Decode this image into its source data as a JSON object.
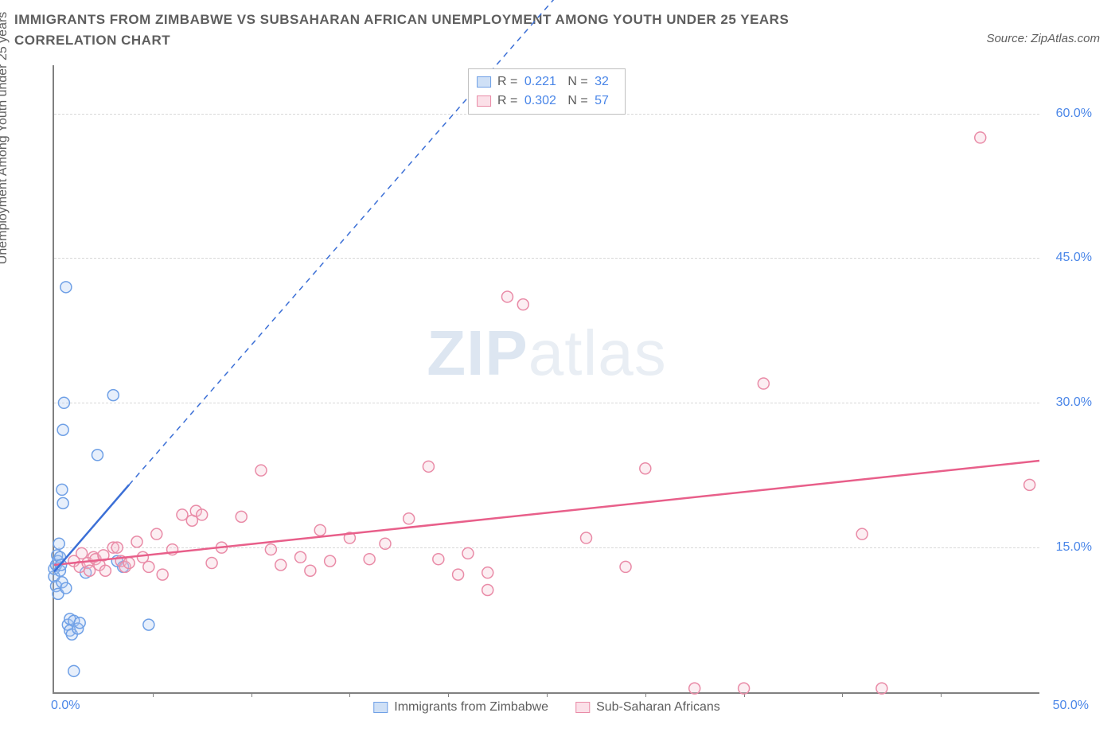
{
  "title": "IMMIGRANTS FROM ZIMBABWE VS SUBSAHARAN AFRICAN UNEMPLOYMENT AMONG YOUTH UNDER 25 YEARS CORRELATION CHART",
  "source": "Source: ZipAtlas.com",
  "watermark_a": "ZIP",
  "watermark_b": "atlas",
  "y_axis_label": "Unemployment Among Youth under 25 years",
  "chart": {
    "type": "scatter-with-trendlines",
    "background_color": "#ffffff",
    "grid_color": "#d8d8d8",
    "axis_color": "#808080",
    "tick_label_color": "#4a86e8",
    "text_color": "#5e5e5e",
    "xlim": [
      0,
      50
    ],
    "ylim": [
      0,
      65
    ],
    "x_ticks": [
      0,
      5,
      10,
      15,
      20,
      25,
      30,
      35,
      40,
      45,
      50
    ],
    "x_tick_labels": {
      "0": "0.0%",
      "50": "50.0%"
    },
    "y_ticks": [
      15,
      30,
      45,
      60
    ],
    "y_tick_labels": {
      "15": "15.0%",
      "30": "30.0%",
      "45": "45.0%",
      "60": "60.0%"
    },
    "marker_radius": 7,
    "marker_fill_opacity": 0.28,
    "marker_stroke_width": 1.5,
    "series": [
      {
        "id": "zimbabwe",
        "legend_label": "Immigrants from Zimbabwe",
        "color_stroke": "#6fa0e6",
        "color_fill": "#a9c6ef",
        "swatch_border": "#6fa0e6",
        "swatch_fill": "#cfe0f6",
        "R": "0.221",
        "N": "32",
        "trend": {
          "x1": 0,
          "y1": 12.5,
          "x2": 3.8,
          "y2": 21.5,
          "dash_x2": 28,
          "dash_y2": 78,
          "color": "#3b6fd6",
          "width": 2.5
        },
        "points": [
          [
            0.0,
            12.0
          ],
          [
            0.0,
            12.8
          ],
          [
            0.1,
            13.2
          ],
          [
            0.1,
            11.0
          ],
          [
            0.15,
            14.2
          ],
          [
            0.2,
            13.6
          ],
          [
            0.2,
            10.2
          ],
          [
            0.25,
            15.4
          ],
          [
            0.3,
            12.6
          ],
          [
            0.3,
            14.0
          ],
          [
            0.35,
            13.2
          ],
          [
            0.4,
            11.4
          ],
          [
            0.4,
            21.0
          ],
          [
            0.45,
            19.6
          ],
          [
            0.45,
            27.2
          ],
          [
            0.5,
            30.0
          ],
          [
            0.6,
            42.0
          ],
          [
            0.6,
            10.8
          ],
          [
            0.7,
            7.0
          ],
          [
            0.8,
            6.4
          ],
          [
            0.8,
            7.6
          ],
          [
            0.9,
            6.0
          ],
          [
            1.0,
            2.2
          ],
          [
            1.0,
            7.4
          ],
          [
            1.2,
            6.6
          ],
          [
            1.3,
            7.2
          ],
          [
            1.6,
            12.4
          ],
          [
            2.2,
            24.6
          ],
          [
            3.0,
            30.8
          ],
          [
            3.2,
            13.6
          ],
          [
            3.5,
            13.0
          ],
          [
            4.8,
            7.0
          ]
        ]
      },
      {
        "id": "subsaharan",
        "legend_label": "Sub-Saharan Africans",
        "color_stroke": "#e98ba7",
        "color_fill": "#f6c3d2",
        "swatch_border": "#e98ba7",
        "swatch_fill": "#fbe0e8",
        "R": "0.302",
        "N": "57",
        "trend": {
          "x1": 0,
          "y1": 13.2,
          "x2": 50,
          "y2": 24.0,
          "color": "#e85f8a",
          "width": 2.5
        },
        "points": [
          [
            1.0,
            13.6
          ],
          [
            1.3,
            13.0
          ],
          [
            1.4,
            14.4
          ],
          [
            1.7,
            13.4
          ],
          [
            1.8,
            12.6
          ],
          [
            2.0,
            14.0
          ],
          [
            2.1,
            13.8
          ],
          [
            2.3,
            13.2
          ],
          [
            2.5,
            14.2
          ],
          [
            2.6,
            12.6
          ],
          [
            3.0,
            15.0
          ],
          [
            3.2,
            15.0
          ],
          [
            3.4,
            13.6
          ],
          [
            3.6,
            13.0
          ],
          [
            3.8,
            13.4
          ],
          [
            4.2,
            15.6
          ],
          [
            4.5,
            14.0
          ],
          [
            4.8,
            13.0
          ],
          [
            5.2,
            16.4
          ],
          [
            5.5,
            12.2
          ],
          [
            6.0,
            14.8
          ],
          [
            6.5,
            18.4
          ],
          [
            7.0,
            17.8
          ],
          [
            7.2,
            18.8
          ],
          [
            7.5,
            18.4
          ],
          [
            8.0,
            13.4
          ],
          [
            8.5,
            15.0
          ],
          [
            9.5,
            18.2
          ],
          [
            10.5,
            23.0
          ],
          [
            11.0,
            14.8
          ],
          [
            11.5,
            13.2
          ],
          [
            12.5,
            14.0
          ],
          [
            13.0,
            12.6
          ],
          [
            13.5,
            16.8
          ],
          [
            14.0,
            13.6
          ],
          [
            15.0,
            16.0
          ],
          [
            16.0,
            13.8
          ],
          [
            16.8,
            15.4
          ],
          [
            18.0,
            18.0
          ],
          [
            19.0,
            23.4
          ],
          [
            19.5,
            13.8
          ],
          [
            20.5,
            12.2
          ],
          [
            21.0,
            14.4
          ],
          [
            22.0,
            10.6
          ],
          [
            22.0,
            12.4
          ],
          [
            23.0,
            41.0
          ],
          [
            23.8,
            40.2
          ],
          [
            27.0,
            16.0
          ],
          [
            29.0,
            13.0
          ],
          [
            30.0,
            23.2
          ],
          [
            32.5,
            0.4
          ],
          [
            35.0,
            0.4
          ],
          [
            36.0,
            32.0
          ],
          [
            41.0,
            16.4
          ],
          [
            42.0,
            0.4
          ],
          [
            47.0,
            57.5
          ],
          [
            49.5,
            21.5
          ]
        ]
      }
    ],
    "legend_top": {
      "R_label": "R =",
      "N_label": "N ="
    }
  }
}
